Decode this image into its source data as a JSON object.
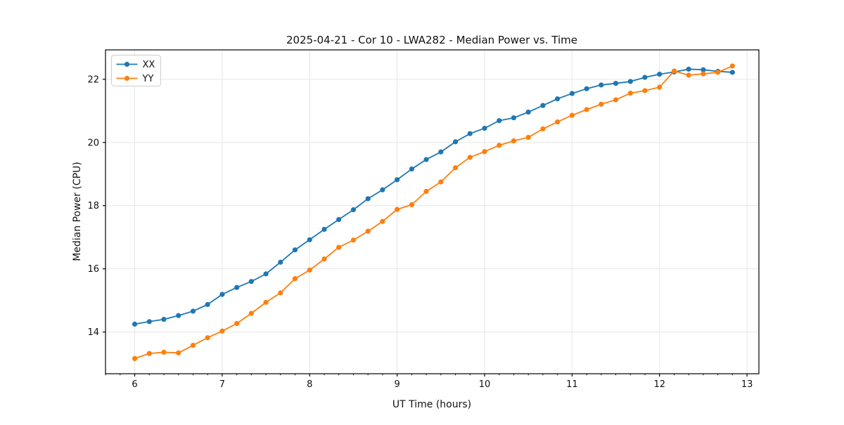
{
  "figure": {
    "title": "2025-04-21 - Cor 10 - LWA282 - Median Power vs. Time",
    "xlabel": "UT Time (hours)",
    "ylabel": "Median Power (CPU)"
  },
  "legend": {
    "items": [
      {
        "label": "XX",
        "color": "#1f77b4"
      },
      {
        "label": "YY",
        "color": "#ff7f0e"
      }
    ]
  },
  "colors": {
    "background": "#ffffff",
    "grid": "#e6e6e6",
    "spine": "#000000",
    "series_xx": "#1f77b4",
    "series_yy": "#ff7f0e",
    "legend_border": "#cccccc"
  },
  "chart_data": {
    "type": "line",
    "title": "2025-04-21 - Cor 10 - LWA282 - Median Power vs. Time",
    "xlabel": "UT Time (hours)",
    "ylabel": "Median Power (CPU)",
    "grid": true,
    "legend_position": "upper-left",
    "xlim": [
      5.666,
      13.136
    ],
    "ylim": [
      12.68,
      22.93
    ],
    "x_ticks": [
      6,
      7,
      8,
      9,
      10,
      11,
      12,
      13
    ],
    "x_minor_tick_step": 0.16667,
    "y_ticks": [
      14,
      16,
      18,
      20,
      22
    ],
    "x": [
      6.0,
      6.167,
      6.333,
      6.5,
      6.667,
      6.833,
      7.0,
      7.167,
      7.333,
      7.5,
      7.667,
      7.833,
      8.0,
      8.167,
      8.333,
      8.5,
      8.667,
      8.833,
      9.0,
      9.167,
      9.333,
      9.5,
      9.667,
      9.833,
      10.0,
      10.167,
      10.333,
      10.5,
      10.667,
      10.833,
      11.0,
      11.167,
      11.333,
      11.5,
      11.667,
      11.833,
      12.0,
      12.167,
      12.333,
      12.5,
      12.667,
      12.833
    ],
    "series": [
      {
        "name": "XX",
        "color": "#1f77b4",
        "marker": "circle",
        "values": [
          14.25,
          14.33,
          14.4,
          14.52,
          14.66,
          14.87,
          15.19,
          15.41,
          15.6,
          15.84,
          16.21,
          16.6,
          16.92,
          17.25,
          17.56,
          17.87,
          18.22,
          18.5,
          18.82,
          19.16,
          19.46,
          19.7,
          20.02,
          20.28,
          20.45,
          20.69,
          20.78,
          20.96,
          21.17,
          21.38,
          21.55,
          21.7,
          21.82,
          21.87,
          21.93,
          22.06,
          22.16,
          22.23,
          22.32,
          22.3,
          22.25,
          22.22
        ]
      },
      {
        "name": "YY",
        "color": "#ff7f0e",
        "marker": "circle",
        "values": [
          13.16,
          13.32,
          13.36,
          13.34,
          13.58,
          13.82,
          14.03,
          14.27,
          14.59,
          14.94,
          15.24,
          15.69,
          15.96,
          16.31,
          16.68,
          16.91,
          17.19,
          17.5,
          17.88,
          18.03,
          18.45,
          18.75,
          19.2,
          19.53,
          19.71,
          19.91,
          20.05,
          20.16,
          20.43,
          20.65,
          20.86,
          21.04,
          21.21,
          21.35,
          21.56,
          21.64,
          21.75,
          22.26,
          22.13,
          22.17,
          22.22,
          22.42
        ]
      }
    ]
  }
}
